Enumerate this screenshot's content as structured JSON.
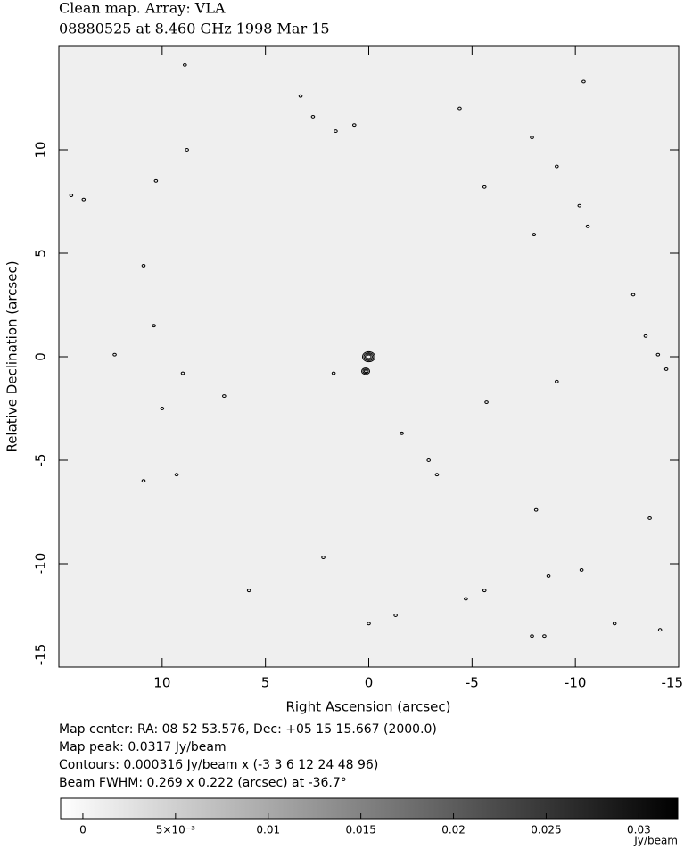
{
  "chart_data": {
    "type": "contour",
    "title": "Clean map.  Array: VLA",
    "subtitle": "08880525 at 8.460 GHz 1998 Mar 15",
    "x_label": "Right Ascension  (arcsec)",
    "y_label": "Relative Declination  (arcsec)",
    "xlim": [
      15,
      -15
    ],
    "ylim": [
      -15,
      15
    ],
    "xticks": [
      10,
      5,
      0,
      -5,
      -10,
      -15
    ],
    "yticks": [
      -15,
      -10,
      -5,
      0,
      5,
      10
    ],
    "points": {
      "x": [
        0.0,
        0.15,
        8.9,
        3.3,
        2.7,
        1.6,
        0.7,
        -4.4,
        -7.9,
        -9.1,
        -5.6,
        -10.2,
        -10.6,
        -8.0,
        10.3,
        14.4,
        13.8,
        10.9,
        10.4,
        12.3,
        9.0,
        10.0,
        7.0,
        1.7,
        -5.7,
        -9.1,
        -12.8,
        -13.4,
        -14.0,
        -14.4,
        -1.6,
        -2.9,
        -3.3,
        10.9,
        9.3,
        2.2,
        -8.1,
        -13.6,
        -8.7,
        -10.3,
        5.8,
        -5.6,
        -4.7,
        0.0,
        -1.3,
        -7.9,
        -8.5,
        -11.9,
        -14.1,
        8.8,
        -10.4
      ],
      "y": [
        0.0,
        -0.7,
        14.1,
        12.6,
        11.6,
        10.9,
        11.2,
        12.0,
        10.6,
        9.2,
        8.2,
        7.3,
        6.3,
        5.9,
        8.5,
        7.8,
        7.6,
        4.4,
        1.5,
        0.1,
        -0.8,
        -2.5,
        -1.9,
        -0.8,
        -2.2,
        -1.2,
        3.0,
        1.0,
        0.1,
        -0.6,
        -3.7,
        -5.0,
        -5.7,
        -6.0,
        -5.7,
        -9.7,
        -7.4,
        -7.8,
        -10.6,
        -10.3,
        -11.3,
        -11.3,
        -11.7,
        -12.9,
        -12.5,
        -13.5,
        -13.5,
        -12.9,
        -13.2,
        10.0,
        13.3
      ]
    },
    "notes": [
      "Map center:  RA: 08 52 53.576,  Dec: +05 15 15.667 (2000.0)",
      "Map peak: 0.0317 Jy/beam",
      "Contours: 0.000316 Jy/beam x (-3 3 6 12 24 48 96)",
      "Beam FWHM: 0.269 x 0.222 (arcsec) at -36.7°"
    ],
    "colorbar": {
      "lim": [
        -0.0012,
        0.0321
      ],
      "ticks": [
        0,
        {
          "value": 0.005,
          "label": "5×10⁻³"
        },
        0.01,
        0.015,
        0.02,
        0.025,
        0.03
      ],
      "unit": "Jy/beam"
    }
  }
}
